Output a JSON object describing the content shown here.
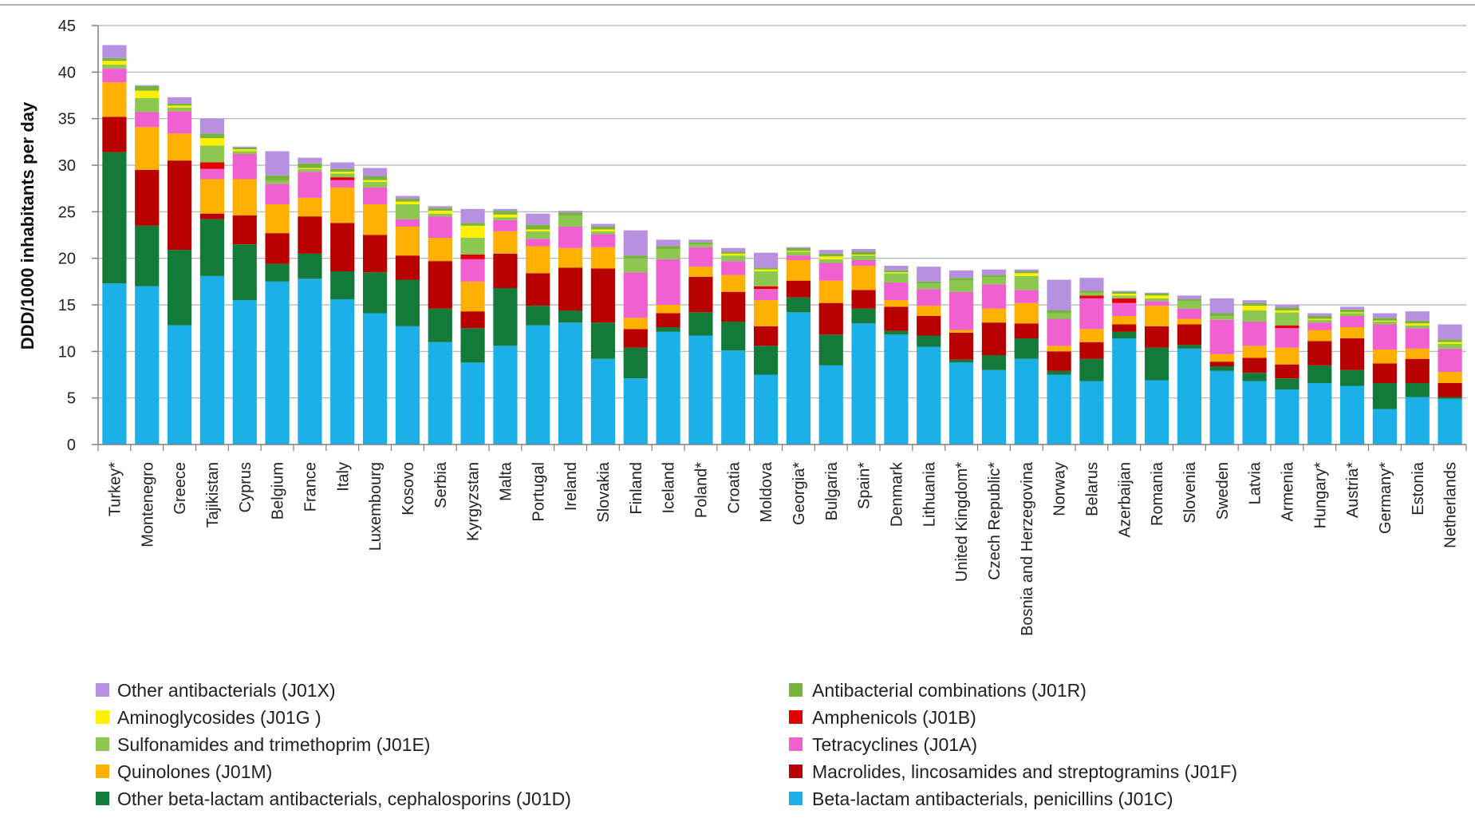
{
  "chart_data": {
    "type": "bar",
    "stacked": true,
    "title": "",
    "xlabel": "",
    "ylabel": "DDD/1000 inhabitants per day",
    "ylim": [
      0,
      45
    ],
    "yticks": [
      0,
      5,
      10,
      15,
      20,
      25,
      30,
      35,
      40,
      45
    ],
    "grid": true,
    "legend_position": "bottom",
    "categories": [
      "Turkey*",
      "Montenegro",
      "Greece",
      "Tajikistan",
      "Cyprus",
      "Belgium",
      "France",
      "Italy",
      "Luxembourg",
      "Kosovo",
      "Serbia",
      "Kyrgyzstan",
      "Malta",
      "Portugal",
      "Ireland",
      "Slovakia",
      "Finland",
      "Iceland",
      "Poland*",
      "Croatia",
      "Moldova",
      "Georgia*",
      "Bulgaria",
      "Spain*",
      "Denmark",
      "Lithuania",
      "United Kingdom*",
      "Czech Republic*",
      "Bosnia and Herzegovina",
      "Norway",
      "Belarus",
      "Azerbaijan",
      "Romania",
      "Slovenia",
      "Sweden",
      "Latvia",
      "Armenia",
      "Hungary*",
      "Austria*",
      "Germany*",
      "Estonia",
      "Netherlands"
    ],
    "series": [
      {
        "name": "Beta-lactam antibacterials, penicillins (J01C)",
        "color": "#1cb0e8",
        "values": [
          17.3,
          17.0,
          12.8,
          18.1,
          15.5,
          17.5,
          17.8,
          15.6,
          14.1,
          12.7,
          11.0,
          8.8,
          10.6,
          12.8,
          13.1,
          9.2,
          7.1,
          12.1,
          11.7,
          10.1,
          7.5,
          14.2,
          8.5,
          13.0,
          11.8,
          10.5,
          8.8,
          8.0,
          9.2,
          7.5,
          6.8,
          11.4,
          6.9,
          10.3,
          7.9,
          6.8,
          5.9,
          6.6,
          6.3,
          3.8,
          5.1,
          4.9
        ]
      },
      {
        "name": "Other beta-lactam antibacterials, cephalosporins (J01D)",
        "color": "#137a3a",
        "values": [
          14.1,
          6.5,
          8.1,
          6.1,
          6.0,
          1.9,
          2.7,
          3.0,
          4.4,
          5.0,
          3.6,
          3.7,
          6.2,
          2.1,
          1.3,
          3.9,
          3.3,
          0.5,
          2.5,
          3.1,
          3.1,
          1.6,
          3.3,
          1.6,
          0.4,
          1.2,
          0.3,
          1.6,
          2.2,
          0.4,
          2.4,
          0.7,
          3.5,
          0.4,
          0.5,
          0.9,
          1.2,
          1.9,
          1.7,
          2.8,
          1.5,
          0.2
        ]
      },
      {
        "name": "Macrolides, lincosamides and streptogramins (J01F)",
        "color": "#b80000",
        "values": [
          3.8,
          6.0,
          9.6,
          0.6,
          3.1,
          3.3,
          4.0,
          5.2,
          4.0,
          2.6,
          5.1,
          1.8,
          3.7,
          3.5,
          4.6,
          5.8,
          2.0,
          1.5,
          3.8,
          3.2,
          2.1,
          1.8,
          3.4,
          2.0,
          2.6,
          2.1,
          2.9,
          3.5,
          1.6,
          2.1,
          1.8,
          0.8,
          2.3,
          2.2,
          0.5,
          1.6,
          1.5,
          2.6,
          3.4,
          2.1,
          2.6,
          1.5
        ]
      },
      {
        "name": "Quinolones (J01M)",
        "color": "#ffb000",
        "values": [
          3.7,
          4.6,
          2.9,
          3.7,
          3.9,
          3.1,
          2.0,
          3.8,
          3.3,
          3.1,
          2.5,
          3.2,
          2.4,
          2.9,
          2.1,
          2.3,
          1.2,
          0.9,
          1.1,
          1.8,
          2.8,
          2.2,
          2.4,
          2.6,
          0.7,
          1.1,
          0.3,
          1.5,
          2.2,
          0.6,
          1.4,
          0.9,
          2.2,
          0.6,
          0.8,
          1.3,
          1.8,
          1.2,
          1.2,
          1.5,
          1.1,
          1.2
        ]
      },
      {
        "name": "Tetracyclines (J01A)",
        "color": "#f060d0",
        "values": [
          1.5,
          1.6,
          2.4,
          1.1,
          2.7,
          2.2,
          2.8,
          0.8,
          1.8,
          0.8,
          2.3,
          2.4,
          1.2,
          0.8,
          2.3,
          1.4,
          4.9,
          4.9,
          2.1,
          1.5,
          1.2,
          0.5,
          1.9,
          0.6,
          1.9,
          1.8,
          4.1,
          2.6,
          1.4,
          2.9,
          3.3,
          1.4,
          0.5,
          1.1,
          3.7,
          2.6,
          2.1,
          0.8,
          1.2,
          2.7,
          2.2,
          2.5
        ]
      },
      {
        "name": "Amphenicols (J01B)",
        "color": "#e00000",
        "values": [
          0.0,
          0.0,
          0.0,
          0.7,
          0.0,
          0.0,
          0.0,
          0.3,
          0.0,
          0.0,
          0.0,
          0.5,
          0.0,
          0.0,
          0.0,
          0.0,
          0.0,
          0.0,
          0.0,
          0.0,
          0.3,
          0.0,
          0.0,
          0.0,
          0.0,
          0.0,
          0.0,
          0.0,
          0.0,
          0.0,
          0.3,
          0.5,
          0.0,
          0.0,
          0.0,
          0.0,
          0.3,
          0.0,
          0.0,
          0.0,
          0.0,
          0.0
        ]
      },
      {
        "name": "Sulfonamides and trimethoprim (J01E)",
        "color": "#8cc850",
        "values": [
          0.4,
          1.5,
          0.4,
          1.8,
          0.3,
          0.3,
          0.3,
          0.4,
          0.6,
          1.6,
          0.3,
          1.8,
          0.3,
          0.8,
          1.2,
          0.3,
          1.5,
          1.1,
          0.3,
          0.6,
          1.6,
          0.4,
          0.4,
          0.5,
          1.0,
          0.6,
          1.2,
          0.8,
          1.5,
          0.6,
          0.3,
          0.3,
          0.3,
          0.8,
          0.4,
          1.2,
          1.4,
          0.3,
          0.3,
          0.3,
          0.3,
          0.5
        ]
      },
      {
        "name": "Aminoglycosides (J01G )",
        "color": "#fff000",
        "values": [
          0.4,
          0.8,
          0.2,
          0.8,
          0.2,
          0.0,
          0.1,
          0.2,
          0.2,
          0.3,
          0.3,
          1.3,
          0.3,
          0.2,
          0.0,
          0.2,
          0.0,
          0.0,
          0.0,
          0.2,
          0.2,
          0.1,
          0.3,
          0.1,
          0.1,
          0.0,
          0.0,
          0.0,
          0.3,
          0.0,
          0.0,
          0.2,
          0.3,
          0.0,
          0.0,
          0.5,
          0.2,
          0.1,
          0.1,
          0.1,
          0.2,
          0.2
        ]
      },
      {
        "name": "Antibacterial combinations (J01R)",
        "color": "#78b43c",
        "values": [
          0.3,
          0.5,
          0.2,
          0.5,
          0.2,
          0.6,
          0.5,
          0.3,
          0.4,
          0.3,
          0.3,
          0.3,
          0.4,
          0.5,
          0.3,
          0.3,
          0.3,
          0.3,
          0.2,
          0.2,
          0.2,
          0.3,
          0.3,
          0.3,
          0.2,
          0.2,
          0.3,
          0.2,
          0.2,
          0.3,
          0.2,
          0.2,
          0.2,
          0.2,
          0.3,
          0.3,
          0.3,
          0.3,
          0.3,
          0.3,
          0.3,
          0.3
        ]
      },
      {
        "name": "Other antibacterials (J01X)",
        "color": "#b890e0",
        "values": [
          1.4,
          0.1,
          0.7,
          1.6,
          0.1,
          2.6,
          0.6,
          0.7,
          0.9,
          0.3,
          0.2,
          1.5,
          0.2,
          1.2,
          0.2,
          0.3,
          2.7,
          0.7,
          0.3,
          0.4,
          1.6,
          0.1,
          0.4,
          0.3,
          0.5,
          1.6,
          0.8,
          0.6,
          0.2,
          3.3,
          1.4,
          0.1,
          0.1,
          0.4,
          1.6,
          0.3,
          0.3,
          0.3,
          0.3,
          0.5,
          1.0,
          1.6
        ]
      }
    ],
    "legend": {
      "left": [
        {
          "label": "Other antibacterials (J01X)",
          "color": "#b890e0"
        },
        {
          "label": "Aminoglycosides (J01G )",
          "color": "#fff000"
        },
        {
          "label": "Sulfonamides and trimethoprim (J01E)",
          "color": "#8cc850"
        },
        {
          "label": "Quinolones (J01M)",
          "color": "#ffb000"
        },
        {
          "label": "Other beta-lactam antibacterials, cephalosporins (J01D)",
          "color": "#137a3a"
        }
      ],
      "right": [
        {
          "label": "Antibacterial combinations (J01R)",
          "color": "#78b43c"
        },
        {
          "label": "Amphenicols (J01B)",
          "color": "#e00000"
        },
        {
          "label": "Tetracyclines (J01A)",
          "color": "#f060d0"
        },
        {
          "label": "Macrolides, lincosamides and streptogramins (J01F)",
          "color": "#b80000"
        },
        {
          "label": "Beta-lactam antibacterials, penicillins (J01C)",
          "color": "#1cb0e8"
        }
      ]
    }
  }
}
